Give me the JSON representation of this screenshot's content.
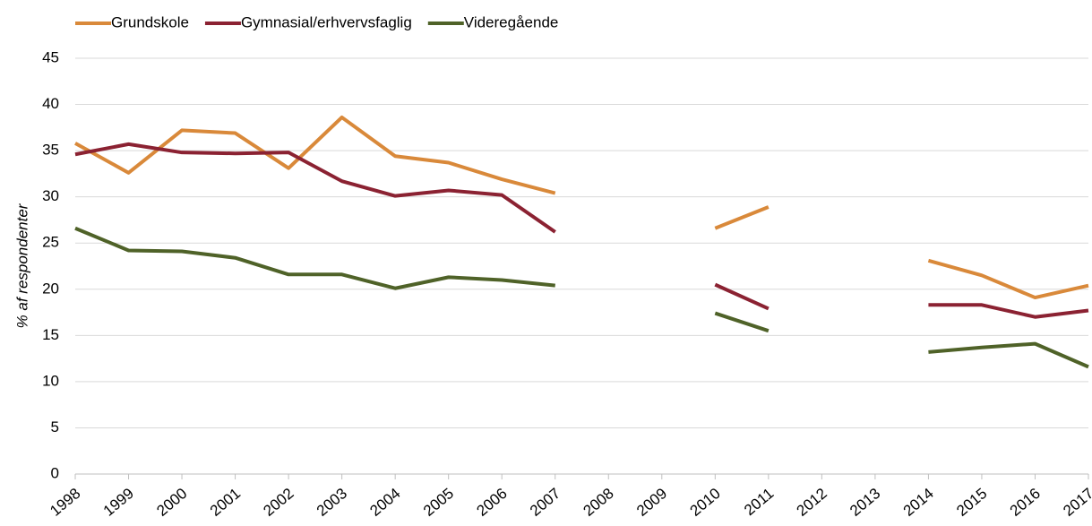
{
  "chart_data": {
    "type": "line",
    "y_label": "% af respondenter",
    "categories": [
      "1998",
      "1999",
      "2000",
      "2001",
      "2002",
      "2003",
      "2004",
      "2005",
      "2006",
      "2007",
      "2008",
      "2009",
      "2010",
      "2011",
      "2012",
      "2013",
      "2014",
      "2015",
      "2016",
      "2017"
    ],
    "series": [
      {
        "name": "Grundskole",
        "color": "#d9893a",
        "values": [
          35.8,
          32.6,
          37.2,
          36.9,
          33.1,
          38.6,
          34.4,
          33.7,
          31.9,
          30.4,
          null,
          null,
          26.6,
          28.9,
          null,
          null,
          23.1,
          21.5,
          19.1,
          20.4
        ]
      },
      {
        "name": "Gymnasial/erhvervsfaglig",
        "color": "#8b2232",
        "values": [
          34.6,
          35.7,
          34.8,
          34.7,
          34.8,
          31.7,
          30.1,
          30.7,
          30.2,
          26.2,
          null,
          null,
          20.5,
          17.9,
          null,
          null,
          18.3,
          18.3,
          17.0,
          17.7
        ]
      },
      {
        "name": "Videregående",
        "color": "#4f6228",
        "values": [
          26.6,
          24.2,
          24.1,
          23.4,
          21.6,
          21.6,
          20.1,
          21.3,
          21.0,
          20.4,
          null,
          null,
          17.4,
          15.5,
          null,
          null,
          13.2,
          13.7,
          14.1,
          11.6
        ]
      }
    ],
    "ylim": [
      0,
      45
    ],
    "yticks": [
      0,
      5,
      10,
      15,
      20,
      25,
      30,
      35,
      40,
      45
    ],
    "grid": true,
    "legend": "top-left"
  }
}
